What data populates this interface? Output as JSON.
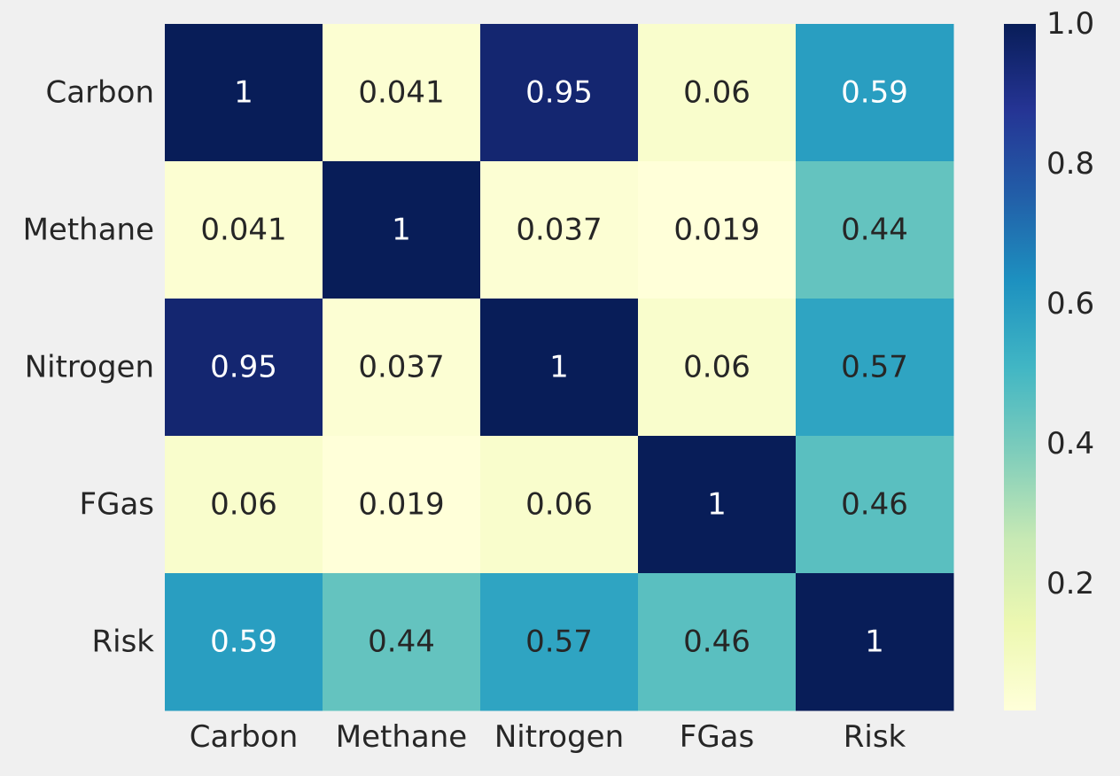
{
  "chart_data": {
    "type": "heatmap",
    "title": "",
    "xlabel": "",
    "ylabel": "",
    "x_categories": [
      "Carbon",
      "Methane",
      "Nitrogen",
      "FGas",
      "Risk"
    ],
    "y_categories": [
      "Carbon",
      "Methane",
      "Nitrogen",
      "FGas",
      "Risk"
    ],
    "values": [
      [
        1,
        0.041,
        0.95,
        0.06,
        0.59
      ],
      [
        0.041,
        1,
        0.037,
        0.019,
        0.44
      ],
      [
        0.95,
        0.037,
        1,
        0.06,
        0.57
      ],
      [
        0.06,
        0.019,
        0.06,
        1,
        0.46
      ],
      [
        0.59,
        0.44,
        0.57,
        0.46,
        1
      ]
    ],
    "cell_labels": [
      [
        "1",
        "0.041",
        "0.95",
        "0.06",
        "0.59"
      ],
      [
        "0.041",
        "1",
        "0.037",
        "0.019",
        "0.44"
      ],
      [
        "0.95",
        "0.037",
        "1",
        "0.06",
        "0.57"
      ],
      [
        "0.06",
        "0.019",
        "0.06",
        "1",
        "0.46"
      ],
      [
        "0.59",
        "0.44",
        "0.57",
        "0.46",
        "1"
      ]
    ],
    "colormap": "YlGnBu",
    "color_range": [
      0.019,
      1
    ],
    "colorbar": {
      "ticks": [
        0.2,
        0.4,
        0.6,
        0.8,
        1.0
      ],
      "tick_labels": [
        "0.2",
        "0.4",
        "0.6",
        "0.8",
        "1.0"
      ],
      "placement": "right"
    },
    "background_color": "#f0f0f0",
    "label_dark_color": "#262626",
    "label_light_color": "#ffffff",
    "grid": false
  }
}
